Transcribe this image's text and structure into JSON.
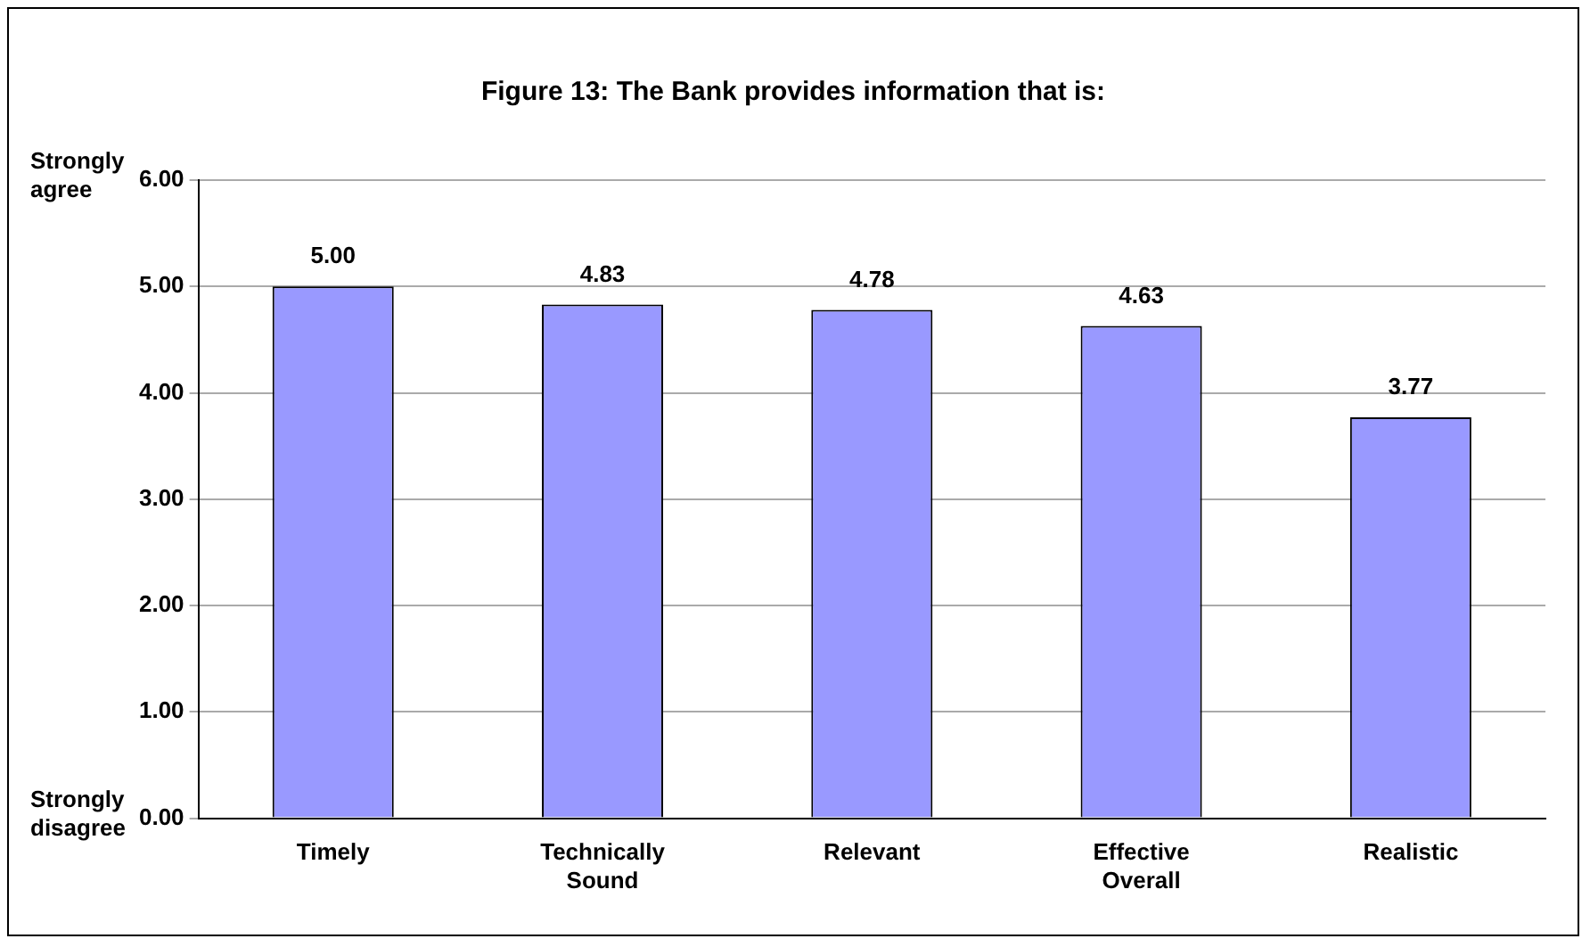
{
  "chart_data": {
    "type": "bar",
    "title": "Figure 13: The Bank provides information that is:",
    "categories": [
      "Timely",
      "Technically Sound",
      "Relevant",
      "Effective Overall",
      "Realistic"
    ],
    "values": [
      5.0,
      4.83,
      4.78,
      4.63,
      3.77
    ],
    "color": "#9999ff",
    "ylim": [
      0,
      6
    ],
    "yticks": [
      {
        "value": 0,
        "label": "0.00"
      },
      {
        "value": 1,
        "label": "1.00"
      },
      {
        "value": 2,
        "label": "2.00"
      },
      {
        "value": 3,
        "label": "3.00"
      },
      {
        "value": 4,
        "label": "4.00"
      },
      {
        "value": 5,
        "label": "5.00"
      },
      {
        "value": 6,
        "label": "6.00"
      }
    ],
    "value_labels": [
      "5.00",
      "4.83",
      "4.78",
      "4.63",
      "3.77"
    ],
    "grid": "y",
    "legend": false,
    "annotations": [
      "Strongly agree",
      "Strongly disagree"
    ]
  }
}
